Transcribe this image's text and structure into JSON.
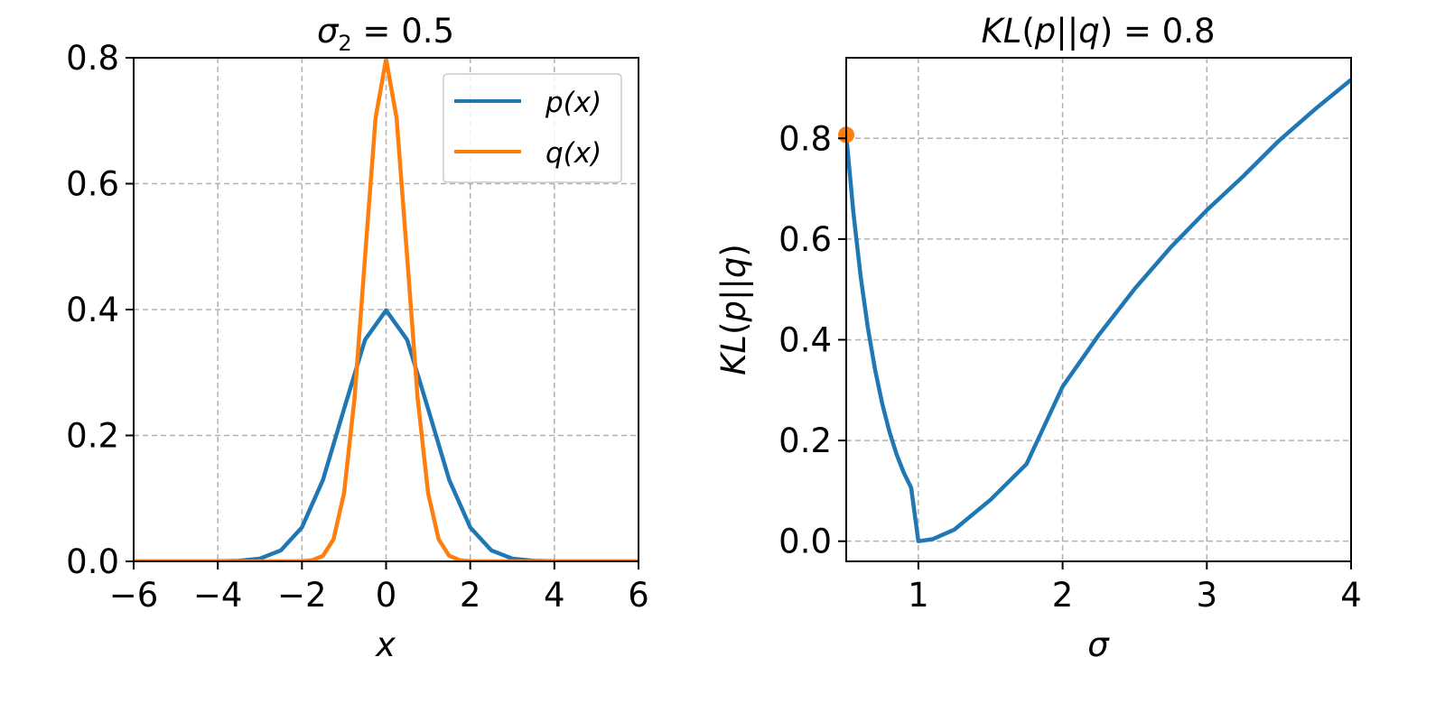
{
  "chart_data": [
    {
      "type": "line",
      "title": "σ₂ = 0.5",
      "xlabel": "x",
      "ylabel": "",
      "xlim": [
        -6,
        6
      ],
      "ylim": [
        0,
        0.8
      ],
      "xticks": [
        -6,
        -4,
        -2,
        0,
        2,
        4,
        6
      ],
      "xtick_labels": [
        "−6",
        "−4",
        "−2",
        "0",
        "2",
        "4",
        "6"
      ],
      "yticks": [
        0.0,
        0.2,
        0.4,
        0.6,
        0.8
      ],
      "ytick_labels": [
        "0.0",
        "0.2",
        "0.4",
        "0.6",
        "0.8"
      ],
      "grid": true,
      "legend_position": "top-right",
      "series": [
        {
          "name": "p(x)",
          "color": "#1f77b4",
          "x": [
            -6,
            -5,
            -4,
            -3.5,
            -3,
            -2.5,
            -2,
            -1.5,
            -1,
            -0.5,
            0,
            0.5,
            1,
            1.5,
            2,
            2.5,
            3,
            3.5,
            4,
            5,
            6
          ],
          "y": [
            0.0,
            0.0,
            0.0001,
            0.0009,
            0.0044,
            0.0175,
            0.054,
            0.1295,
            0.242,
            0.3521,
            0.3989,
            0.3521,
            0.242,
            0.1295,
            0.054,
            0.0175,
            0.0044,
            0.0009,
            0.0001,
            0.0,
            0.0
          ]
        },
        {
          "name": "q(x)",
          "color": "#ff7f0e",
          "x": [
            -6,
            -3,
            -2,
            -1.75,
            -1.5,
            -1.25,
            -1,
            -0.75,
            -0.5,
            -0.25,
            0,
            0.25,
            0.5,
            0.75,
            1,
            1.25,
            1.5,
            1.75,
            2,
            3,
            6
          ],
          "y": [
            0.0,
            0.0,
            0.0003,
            0.0018,
            0.0089,
            0.035,
            0.108,
            0.259,
            0.4839,
            0.7041,
            0.7979,
            0.7041,
            0.4839,
            0.259,
            0.108,
            0.035,
            0.0089,
            0.0018,
            0.0003,
            0.0,
            0.0
          ]
        }
      ]
    },
    {
      "type": "line",
      "title": "KL(p||q) = 0.8",
      "xlabel": "σ",
      "ylabel": "KL(p||q)",
      "xlim": [
        0.5,
        4
      ],
      "ylim": [
        -0.04,
        0.96
      ],
      "xticks": [
        1,
        2,
        3,
        4
      ],
      "xtick_labels": [
        "1",
        "2",
        "3",
        "4"
      ],
      "yticks": [
        0.0,
        0.2,
        0.4,
        0.6,
        0.8
      ],
      "ytick_labels": [
        "0.0",
        "0.2",
        "0.4",
        "0.6",
        "0.8"
      ],
      "grid": true,
      "series": [
        {
          "name": "KL",
          "color": "#1f77b4",
          "x": [
            0.5,
            0.55,
            0.6,
            0.65,
            0.7,
            0.75,
            0.8,
            0.85,
            0.9,
            0.95,
            1.0,
            1.1,
            1.25,
            1.5,
            1.75,
            2.0,
            2.25,
            2.5,
            2.75,
            3.0,
            3.25,
            3.5,
            3.75,
            4.0
          ],
          "y": [
            0.8069,
            0.6514,
            0.5258,
            0.4238,
            0.3406,
            0.2726,
            0.217,
            0.1718,
            0.1354,
            0.1063,
            0.0,
            0.0042,
            0.0231,
            0.0822,
            0.1532,
            0.3069,
            0.4092,
            0.5013,
            0.5837,
            0.6573,
            0.7241,
            0.7953,
            0.8578,
            0.9163
          ]
        }
      ],
      "highlight_point": {
        "x": 0.5,
        "y": 0.807,
        "color": "#ff7f0e"
      }
    }
  ]
}
